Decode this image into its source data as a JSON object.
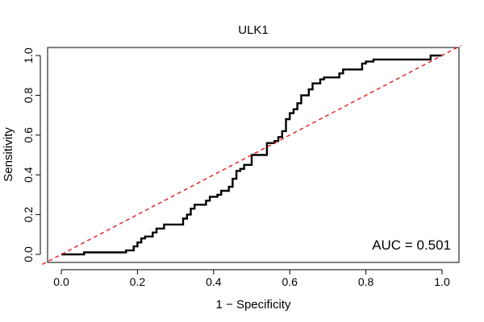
{
  "chart_data": {
    "type": "line",
    "title": "ULK1",
    "xlabel": "1 − Specificity",
    "ylabel": "Sensitivity",
    "xlim": [
      0,
      1
    ],
    "ylim": [
      0,
      1
    ],
    "x_ticks": [
      "0.0",
      "0.2",
      "0.4",
      "0.6",
      "0.8",
      "1.0"
    ],
    "y_ticks": [
      "0.0",
      "0.2",
      "0.4",
      "0.6",
      "0.8",
      "1.0"
    ],
    "annotation": "AUC = 0.501",
    "grid": false,
    "series": [
      {
        "style": "step",
        "color": "#000000",
        "points": [
          [
            0.0,
            0.0
          ],
          [
            0.06,
            0.0
          ],
          [
            0.06,
            0.01
          ],
          [
            0.17,
            0.01
          ],
          [
            0.17,
            0.02
          ],
          [
            0.19,
            0.02
          ],
          [
            0.19,
            0.04
          ],
          [
            0.2,
            0.04
          ],
          [
            0.2,
            0.06
          ],
          [
            0.21,
            0.06
          ],
          [
            0.21,
            0.08
          ],
          [
            0.22,
            0.08
          ],
          [
            0.22,
            0.09
          ],
          [
            0.24,
            0.09
          ],
          [
            0.24,
            0.11
          ],
          [
            0.25,
            0.11
          ],
          [
            0.25,
            0.13
          ],
          [
            0.27,
            0.13
          ],
          [
            0.27,
            0.15
          ],
          [
            0.32,
            0.15
          ],
          [
            0.32,
            0.18
          ],
          [
            0.33,
            0.18
          ],
          [
            0.33,
            0.2
          ],
          [
            0.34,
            0.2
          ],
          [
            0.34,
            0.23
          ],
          [
            0.35,
            0.23
          ],
          [
            0.35,
            0.25
          ],
          [
            0.38,
            0.25
          ],
          [
            0.38,
            0.27
          ],
          [
            0.39,
            0.27
          ],
          [
            0.39,
            0.29
          ],
          [
            0.41,
            0.29
          ],
          [
            0.41,
            0.3
          ],
          [
            0.42,
            0.3
          ],
          [
            0.42,
            0.32
          ],
          [
            0.44,
            0.32
          ],
          [
            0.44,
            0.34
          ],
          [
            0.45,
            0.34
          ],
          [
            0.45,
            0.38
          ],
          [
            0.46,
            0.38
          ],
          [
            0.46,
            0.42
          ],
          [
            0.47,
            0.42
          ],
          [
            0.47,
            0.43
          ],
          [
            0.48,
            0.43
          ],
          [
            0.48,
            0.45
          ],
          [
            0.5,
            0.45
          ],
          [
            0.5,
            0.5
          ],
          [
            0.54,
            0.5
          ],
          [
            0.54,
            0.56
          ],
          [
            0.56,
            0.56
          ],
          [
            0.56,
            0.57
          ],
          [
            0.57,
            0.57
          ],
          [
            0.57,
            0.59
          ],
          [
            0.58,
            0.59
          ],
          [
            0.58,
            0.62
          ],
          [
            0.59,
            0.62
          ],
          [
            0.59,
            0.68
          ],
          [
            0.6,
            0.68
          ],
          [
            0.6,
            0.71
          ],
          [
            0.61,
            0.71
          ],
          [
            0.61,
            0.73
          ],
          [
            0.62,
            0.73
          ],
          [
            0.62,
            0.76
          ],
          [
            0.63,
            0.76
          ],
          [
            0.63,
            0.8
          ],
          [
            0.65,
            0.8
          ],
          [
            0.65,
            0.83
          ],
          [
            0.66,
            0.83
          ],
          [
            0.66,
            0.86
          ],
          [
            0.68,
            0.86
          ],
          [
            0.68,
            0.88
          ],
          [
            0.69,
            0.88
          ],
          [
            0.69,
            0.89
          ],
          [
            0.73,
            0.89
          ],
          [
            0.73,
            0.91
          ],
          [
            0.74,
            0.91
          ],
          [
            0.74,
            0.93
          ],
          [
            0.79,
            0.93
          ],
          [
            0.79,
            0.96
          ],
          [
            0.8,
            0.96
          ],
          [
            0.8,
            0.97
          ],
          [
            0.82,
            0.97
          ],
          [
            0.82,
            0.98
          ],
          [
            0.97,
            0.98
          ],
          [
            0.97,
            1.0
          ],
          [
            1.0,
            1.0
          ]
        ]
      },
      {
        "style": "dashed",
        "color": "#e41a1c",
        "points": [
          [
            -0.05,
            -0.05
          ],
          [
            1.05,
            1.05
          ]
        ]
      }
    ]
  }
}
